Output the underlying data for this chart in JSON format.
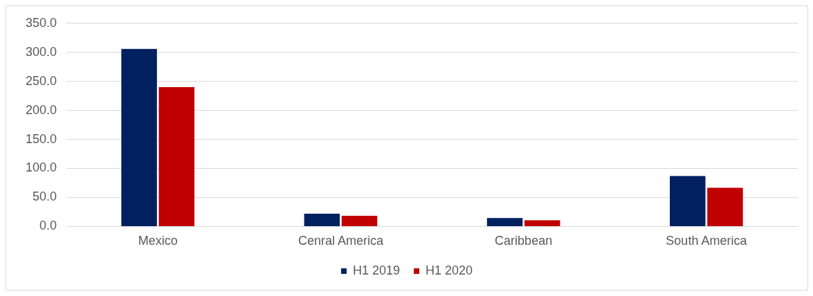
{
  "chart_data": {
    "type": "bar",
    "categories": [
      "Mexico",
      "Cenral America",
      "Caribbean",
      "South America"
    ],
    "series": [
      {
        "name": "H1 2019",
        "color": "#002060",
        "values": [
          306,
          22,
          14.6,
          87
        ]
      },
      {
        "name": "H1 2020",
        "color": "#c00000",
        "values": [
          240,
          18.3,
          10.5,
          66.5
        ]
      }
    ],
    "ylim": [
      0,
      350
    ],
    "yticks": [
      {
        "value": 0,
        "label": "0.0"
      },
      {
        "value": 50,
        "label": "50.0"
      },
      {
        "value": 100,
        "label": "100.0"
      },
      {
        "value": 150,
        "label": "150.0"
      },
      {
        "value": 200,
        "label": "200.0"
      },
      {
        "value": 250,
        "label": "250.0"
      },
      {
        "value": 300,
        "label": "300.0"
      },
      {
        "value": 350,
        "label": "350.0"
      }
    ],
    "grid": "y",
    "legend": "bottom"
  }
}
